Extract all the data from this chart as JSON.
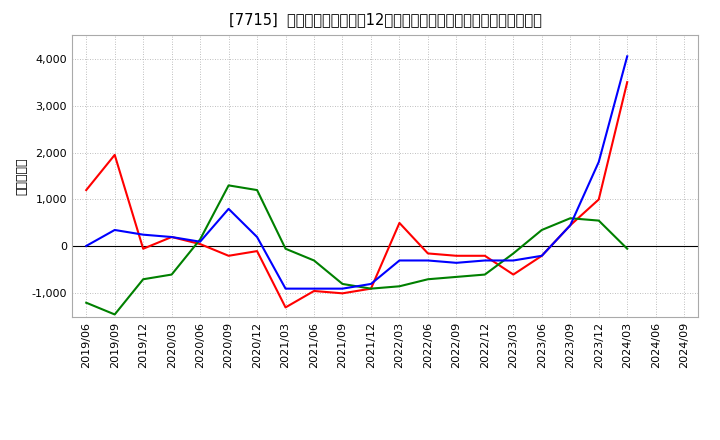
{
  "title": "[7715]  キャッシュフローの12か月移動合計の対前年同期増減額の推移",
  "ylabel": "（百万円）",
  "background_color": "#ffffff",
  "plot_bg_color": "#ffffff",
  "grid_color": "#aaaaaa",
  "xlabels": [
    "2019/06",
    "2019/09",
    "2019/12",
    "2020/03",
    "2020/06",
    "2020/09",
    "2020/12",
    "2021/03",
    "2021/06",
    "2021/09",
    "2021/12",
    "2022/03",
    "2022/06",
    "2022/09",
    "2022/12",
    "2023/03",
    "2023/06",
    "2023/09",
    "2023/12",
    "2024/03",
    "2024/06",
    "2024/09"
  ],
  "operating_cf": [
    1200,
    1950,
    -50,
    200,
    50,
    -200,
    -100,
    -1300,
    -950,
    -1000,
    -900,
    500,
    -150,
    -200,
    -200,
    -600,
    -200,
    450,
    1000,
    3500,
    null,
    null
  ],
  "investing_cf": [
    -1200,
    -1450,
    -700,
    -600,
    150,
    1300,
    1200,
    -50,
    -300,
    -800,
    -900,
    -850,
    -700,
    -650,
    -600,
    -150,
    350,
    600,
    550,
    -50,
    null,
    null
  ],
  "free_cf": [
    10,
    350,
    250,
    200,
    100,
    800,
    200,
    -900,
    -900,
    -900,
    -800,
    -300,
    -300,
    -350,
    -300,
    -300,
    -200,
    450,
    1800,
    4050,
    null,
    null
  ],
  "colors": {
    "operating": "#ff0000",
    "investing": "#008000",
    "free": "#0000ff"
  },
  "ylim": [
    -1500,
    4500
  ],
  "yticks": [
    -1000,
    0,
    1000,
    2000,
    3000,
    4000
  ]
}
